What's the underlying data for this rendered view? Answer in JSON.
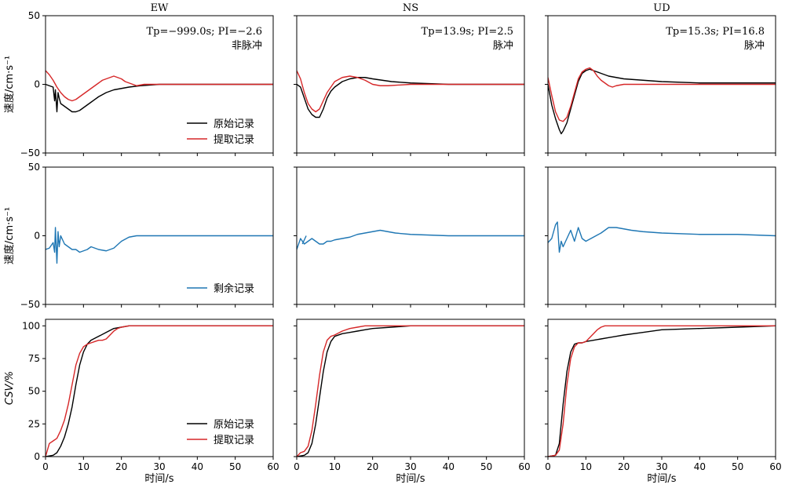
{
  "chart_data": {
    "type": "line",
    "grid": false,
    "colors": {
      "original": "#000000",
      "extracted": "#d62728",
      "residual": "#1f77b4"
    },
    "column_titles": [
      "EW",
      "NS",
      "UD"
    ],
    "ylabels": {
      "velocity": "速度/cm·s⁻¹",
      "csv": "CSV/%"
    },
    "xlabel": "时间/s",
    "xlim": [
      0,
      60
    ],
    "xticks": [
      "0",
      "10",
      "20",
      "30",
      "40",
      "50",
      "60"
    ],
    "rows": [
      {
        "id": "velocity",
        "ylim": [
          -50,
          50
        ],
        "yticks": [
          "−50",
          "0",
          "50"
        ]
      },
      {
        "id": "residual",
        "ylim": [
          -50,
          50
        ],
        "yticks": [
          "−50",
          "0",
          "50"
        ]
      },
      {
        "id": "csv",
        "ylim": [
          0,
          105
        ],
        "yticks": [
          "0",
          "25",
          "50",
          "75",
          "100"
        ]
      }
    ],
    "annotations": [
      {
        "text": "Tp=−999.0s; PI=−2.6",
        "label": "非脉冲"
      },
      {
        "text": "Tp=13.9s; PI=2.5",
        "label": "脉冲"
      },
      {
        "text": "Tp=15.3s; PI=16.8",
        "label": "脉冲"
      }
    ],
    "legends": {
      "top": [
        "原始记录",
        "提取记录"
      ],
      "middle": [
        "剩余记录"
      ],
      "bottom": [
        "原始记录",
        "提取记录"
      ]
    },
    "panels": [
      [
        {
          "series": [
            {
              "key": "original",
              "name": "原始记录",
              "x": [
                0,
                2,
                2.4,
                2.6,
                3,
                3.3,
                3.6,
                4,
                5,
                6,
                7,
                8,
                9,
                10,
                12,
                14,
                16,
                18,
                20,
                22,
                25,
                30,
                40,
                50,
                60
              ],
              "y": [
                0,
                -2,
                -12,
                -4,
                -20,
                -6,
                -10,
                -14,
                -16,
                -18,
                -20,
                -20,
                -19,
                -17,
                -13,
                -9,
                -6,
                -4,
                -3,
                -2,
                -1,
                0,
                0,
                0,
                0
              ]
            },
            {
              "key": "extracted",
              "name": "提取记录",
              "x": [
                0,
                1,
                2,
                3,
                4,
                5,
                6,
                7,
                8,
                9,
                10,
                11,
                12,
                13,
                14,
                15,
                16,
                17,
                18,
                19,
                20,
                21,
                22,
                24,
                26,
                30,
                40,
                50,
                60
              ],
              "y": [
                10,
                7,
                3,
                -2,
                -6,
                -9,
                -11,
                -12,
                -11,
                -9,
                -7,
                -5,
                -3,
                -1,
                1,
                3,
                4,
                5,
                6,
                5,
                4,
                2,
                1,
                -1,
                0,
                0,
                0,
                0,
                0
              ]
            }
          ]
        },
        {
          "series": [
            {
              "key": "residual",
              "name": "剩余记录",
              "x": [
                0,
                1,
                2,
                2.4,
                2.6,
                3,
                3.3,
                3.6,
                4,
                5,
                6,
                7,
                8,
                9,
                10,
                11,
                12,
                14,
                16,
                18,
                20,
                22,
                24,
                30,
                40,
                50,
                60
              ],
              "y": [
                -10,
                -9,
                -5,
                -12,
                6,
                -20,
                3,
                -8,
                0,
                -6,
                -8,
                -10,
                -10,
                -12,
                -11,
                -10,
                -8,
                -10,
                -11,
                -9,
                -4,
                -1,
                0,
                0,
                0,
                0,
                0
              ]
            }
          ]
        },
        {
          "series": [
            {
              "key": "original",
              "name": "原始记录",
              "x": [
                0,
                2,
                3,
                4,
                5,
                6,
                7,
                8,
                9,
                10,
                11,
                12,
                14,
                16,
                18,
                20,
                22,
                30,
                40,
                50,
                60
              ],
              "y": [
                0,
                1,
                3,
                8,
                15,
                25,
                38,
                55,
                70,
                80,
                86,
                89,
                92,
                95,
                98,
                99,
                100,
                100,
                100,
                100,
                100
              ]
            },
            {
              "key": "extracted",
              "name": "提取记录",
              "x": [
                0,
                1,
                2,
                3,
                4,
                5,
                6,
                7,
                8,
                9,
                10,
                11,
                12,
                13,
                14,
                15,
                16,
                17,
                18,
                19,
                20,
                22,
                30,
                40,
                50,
                60
              ],
              "y": [
                0,
                10,
                12,
                14,
                20,
                28,
                40,
                55,
                70,
                79,
                84,
                86,
                87,
                88,
                89,
                89,
                90,
                93,
                96,
                98,
                99,
                100,
                100,
                100,
                100,
                100
              ]
            }
          ]
        }
      ],
      [
        {
          "series": [
            {
              "key": "original",
              "name": "原始记录",
              "x": [
                0,
                1,
                2,
                3,
                4,
                5,
                6,
                7,
                8,
                9,
                10,
                12,
                14,
                16,
                18,
                20,
                25,
                30,
                40,
                50,
                60
              ],
              "y": [
                0,
                -2,
                -10,
                -18,
                -22,
                -24,
                -24,
                -18,
                -10,
                -5,
                -2,
                2,
                4,
                5,
                5,
                4,
                2,
                1,
                0,
                0,
                0
              ]
            },
            {
              "key": "extracted",
              "name": "提取记录",
              "x": [
                0,
                1,
                2,
                3,
                4,
                5,
                6,
                7,
                8,
                9,
                10,
                12,
                14,
                16,
                18,
                20,
                22,
                24,
                30,
                40,
                50,
                60
              ],
              "y": [
                10,
                4,
                -6,
                -14,
                -18,
                -20,
                -18,
                -12,
                -6,
                -2,
                2,
                5,
                6,
                5,
                3,
                0,
                -1,
                -1,
                0,
                0,
                0,
                0
              ]
            }
          ]
        },
        {
          "series": [
            {
              "key": "residual",
              "name": "剩余记录",
              "x": [
                0,
                1,
                2,
                3,
                4,
                5,
                6,
                7,
                8,
                9,
                10,
                12,
                14,
                16,
                18,
                20,
                22,
                24,
                26,
                30,
                40,
                50,
                60
              ],
              "y": [
                -10,
                -2,
                -6,
                -4,
                -2,
                -4,
                -6,
                -6,
                -4,
                -4,
                -3,
                -2,
                -1,
                1,
                2,
                3,
                4,
                3,
                2,
                1,
                0,
                0,
                0
              ]
            },
            {
              "key": "residual",
              "name": "",
              "x": [
                1.5,
                2.5
              ],
              "y": [
                -6,
                0
              ]
            }
          ]
        },
        {
          "series": [
            {
              "key": "original",
              "name": "原始记录",
              "x": [
                0,
                2,
                3,
                4,
                5,
                6,
                7,
                8,
                9,
                10,
                12,
                14,
                16,
                18,
                20,
                25,
                30,
                40,
                50,
                60
              ],
              "y": [
                0,
                1,
                3,
                10,
                25,
                45,
                65,
                80,
                88,
                92,
                94,
                95,
                96,
                97,
                98,
                99,
                100,
                100,
                100,
                100
              ]
            },
            {
              "key": "extracted",
              "name": "提取记录",
              "x": [
                0,
                1,
                2,
                3,
                4,
                5,
                6,
                7,
                8,
                9,
                10,
                12,
                14,
                16,
                18,
                20,
                25,
                30,
                40,
                50,
                60
              ],
              "y": [
                0,
                3,
                4,
                8,
                20,
                40,
                62,
                80,
                89,
                92,
                93,
                96,
                98,
                99,
                100,
                100,
                100,
                100,
                100,
                100,
                100
              ]
            }
          ]
        }
      ],
      [
        {
          "series": [
            {
              "key": "original",
              "name": "原始记录",
              "x": [
                0,
                1,
                2,
                3,
                3.5,
                4,
                5,
                6,
                7,
                8,
                9,
                10,
                11,
                12,
                14,
                16,
                18,
                20,
                25,
                30,
                40,
                50,
                60
              ],
              "y": [
                0,
                -15,
                -25,
                -33,
                -36,
                -34,
                -28,
                -18,
                -8,
                2,
                8,
                10,
                11,
                10,
                8,
                6,
                5,
                4,
                3,
                2,
                1,
                1,
                1
              ]
            },
            {
              "key": "extracted",
              "name": "提取记录",
              "x": [
                0,
                1,
                2,
                3,
                4,
                5,
                6,
                7,
                8,
                9,
                10,
                11,
                12,
                13,
                14,
                15,
                16,
                17,
                18,
                20,
                22,
                24,
                30,
                40,
                50,
                60
              ],
              "y": [
                5,
                -8,
                -20,
                -26,
                -27,
                -24,
                -16,
                -6,
                4,
                9,
                11,
                12,
                10,
                6,
                3,
                1,
                -1,
                -2,
                -1,
                0,
                0,
                0,
                0,
                0,
                0,
                0
              ]
            }
          ]
        },
        {
          "series": [
            {
              "key": "residual",
              "name": "剩余记录",
              "x": [
                0,
                1,
                2,
                2.5,
                3,
                3.5,
                4,
                5,
                6,
                7,
                8,
                9,
                10,
                12,
                14,
                16,
                18,
                20,
                22,
                25,
                30,
                40,
                50,
                60
              ],
              "y": [
                -5,
                -2,
                8,
                10,
                -12,
                -4,
                -8,
                -2,
                4,
                -4,
                6,
                -2,
                -4,
                -1,
                2,
                6,
                6,
                5,
                4,
                3,
                2,
                1,
                1,
                0
              ]
            }
          ]
        },
        {
          "series": [
            {
              "key": "original",
              "name": "原始记录",
              "x": [
                0,
                2,
                3,
                4,
                5,
                6,
                7,
                8,
                9,
                10,
                12,
                14,
                16,
                18,
                20,
                25,
                30,
                40,
                50,
                60
              ],
              "y": [
                0,
                1,
                10,
                40,
                65,
                80,
                86,
                87,
                87,
                88,
                89,
                90,
                91,
                92,
                93,
                95,
                97,
                98,
                99,
                100
              ]
            },
            {
              "key": "extracted",
              "name": "提取记录",
              "x": [
                0,
                2,
                3,
                4,
                5,
                6,
                7,
                8,
                9,
                10,
                11,
                12,
                13,
                14,
                15,
                16,
                18,
                20,
                30,
                40,
                50,
                60
              ],
              "y": [
                0,
                1,
                5,
                25,
                55,
                75,
                84,
                87,
                87,
                88,
                91,
                94,
                97,
                99,
                100,
                100,
                100,
                100,
                100,
                100,
                100,
                100
              ]
            }
          ]
        }
      ]
    ]
  }
}
